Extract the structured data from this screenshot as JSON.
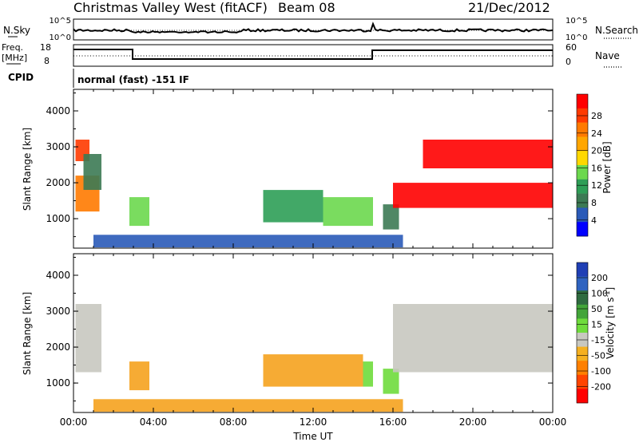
{
  "header": {
    "title": "Christmas Valley West (fitACF)",
    "beam": "Beam 08",
    "date": "21/Dec/2012"
  },
  "strip_panels": {
    "nsky": {
      "label": "N.Sky",
      "ticks": [
        "10^5",
        "10^0"
      ],
      "right_label": "N.Search",
      "right_ticks": [
        "10^5",
        "10^0"
      ]
    },
    "freq": {
      "label_lines": [
        "Freq.",
        "[MHz]"
      ],
      "ticks": [
        "18",
        "8"
      ],
      "right_label": "Nave",
      "right_ticks": [
        "60",
        "0"
      ]
    },
    "cpid": {
      "label": "CPID",
      "text": "normal (fast) -151 IF"
    }
  },
  "chart_data": [
    {
      "type": "heatmap",
      "panel": "power",
      "ylabel": "Slant Range [km]",
      "ylim": [
        180,
        4600
      ],
      "yticks": [
        1000,
        2000,
        3000,
        4000
      ],
      "colorbar": {
        "label": "Power [dB]",
        "ticks": [
          "28",
          "24",
          "20",
          "16",
          "12",
          "8",
          "4"
        ],
        "colors": [
          "#ff0000",
          "#ff3a00",
          "#ff7a00",
          "#ffa600",
          "#ffd800",
          "#6cd84e",
          "#2e9e57",
          "#3c7a54",
          "#2a5ab8",
          "#0000ff"
        ]
      },
      "regions": [
        {
          "t": [
            0.1,
            1.3
          ],
          "r": [
            1200,
            2200
          ],
          "level": 2
        },
        {
          "t": [
            0.1,
            0.8
          ],
          "r": [
            2600,
            3200
          ],
          "level": 1
        },
        {
          "t": [
            0.5,
            1.4
          ],
          "r": [
            1800,
            2800
          ],
          "level": 7
        },
        {
          "t": [
            2.8,
            3.8
          ],
          "r": [
            800,
            1600
          ],
          "level": 5
        },
        {
          "t": [
            9.5,
            12.5
          ],
          "r": [
            900,
            1800
          ],
          "level": 6
        },
        {
          "t": [
            12.5,
            15.0
          ],
          "r": [
            800,
            1600
          ],
          "level": 5
        },
        {
          "t": [
            15.5,
            16.3
          ],
          "r": [
            700,
            1400
          ],
          "level": 7
        },
        {
          "t": [
            16.0,
            24.0
          ],
          "r": [
            1300,
            2000
          ],
          "level": 0
        },
        {
          "t": [
            17.5,
            24.0
          ],
          "r": [
            2400,
            3200
          ],
          "level": 0
        },
        {
          "t": [
            1.0,
            16.5
          ],
          "r": [
            200,
            550
          ],
          "level": 8
        }
      ]
    },
    {
      "type": "heatmap",
      "panel": "velocity",
      "ylabel": "Slant Range [km]",
      "xlabel": "Time UT",
      "ylim": [
        180,
        4600
      ],
      "yticks": [
        1000,
        2000,
        3000,
        4000
      ],
      "xticks": [
        "00:00",
        "04:00",
        "08:00",
        "12:00",
        "16:00",
        "20:00",
        "00:00"
      ],
      "colorbar": {
        "label_lines": [
          "Velocity",
          "[m s",
          "-1",
          "]"
        ],
        "ticks": [
          "200",
          "100",
          "50",
          "15",
          "-15",
          "-50",
          "-100",
          "-200"
        ],
        "colors": [
          "#1f3fb5",
          "#2f63c0",
          "#2f6b40",
          "#43a53a",
          "#6fdc3c",
          "#c8c8c0",
          "#f5b020",
          "#ff8000",
          "#ff4500",
          "#ff0000"
        ]
      },
      "regions": [
        {
          "t": [
            0.1,
            1.4
          ],
          "r": [
            1300,
            3200
          ],
          "category": "-15..15"
        },
        {
          "t": [
            2.8,
            3.8
          ],
          "r": [
            800,
            1600
          ],
          "category": "-50"
        },
        {
          "t": [
            9.5,
            14.5
          ],
          "r": [
            900,
            1800
          ],
          "category": "-50"
        },
        {
          "t": [
            14.5,
            15.0
          ],
          "r": [
            900,
            1600
          ],
          "category": "50"
        },
        {
          "t": [
            15.5,
            16.3
          ],
          "r": [
            700,
            1400
          ],
          "category": "50"
        },
        {
          "t": [
            16.0,
            24.0
          ],
          "r": [
            1300,
            3200
          ],
          "category": "-15..15"
        },
        {
          "t": [
            1.0,
            16.5
          ],
          "r": [
            200,
            550
          ],
          "category": "-50"
        }
      ]
    }
  ]
}
